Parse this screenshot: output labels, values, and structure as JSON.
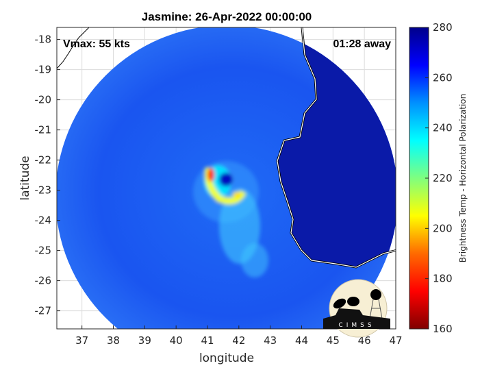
{
  "title": "Jasmine: 26-Apr-2022 00:00:00",
  "vmax_label": "Vmax: 55 kts",
  "time_away_label": "01:28 away",
  "xlabel": "longitude",
  "ylabel": "latitude",
  "x_ticks": [
    "37",
    "38",
    "39",
    "40",
    "41",
    "42",
    "43",
    "44",
    "45",
    "46",
    "47"
  ],
  "y_ticks": [
    "-18",
    "-19",
    "-20",
    "-21",
    "-22",
    "-23",
    "-24",
    "-25",
    "-26",
    "-27"
  ],
  "colorbar": {
    "label": "Brightness Temp - Horizontal Polarization",
    "ticks": [
      "160",
      "180",
      "200",
      "220",
      "240",
      "260",
      "280"
    ],
    "range": [
      160,
      280
    ],
    "colormap": "jet"
  },
  "map": {
    "lon_range": [
      36.2,
      47
    ],
    "lat_range": [
      -27.6,
      -17.6
    ],
    "grid": true,
    "storm_center": {
      "lon": 41.5,
      "lat": -22.7
    },
    "ocean_color": "#1a50f0",
    "land_color": "#0a1aa8",
    "coastline_color": "#000000"
  },
  "logo": {
    "text": "CIMSS"
  }
}
